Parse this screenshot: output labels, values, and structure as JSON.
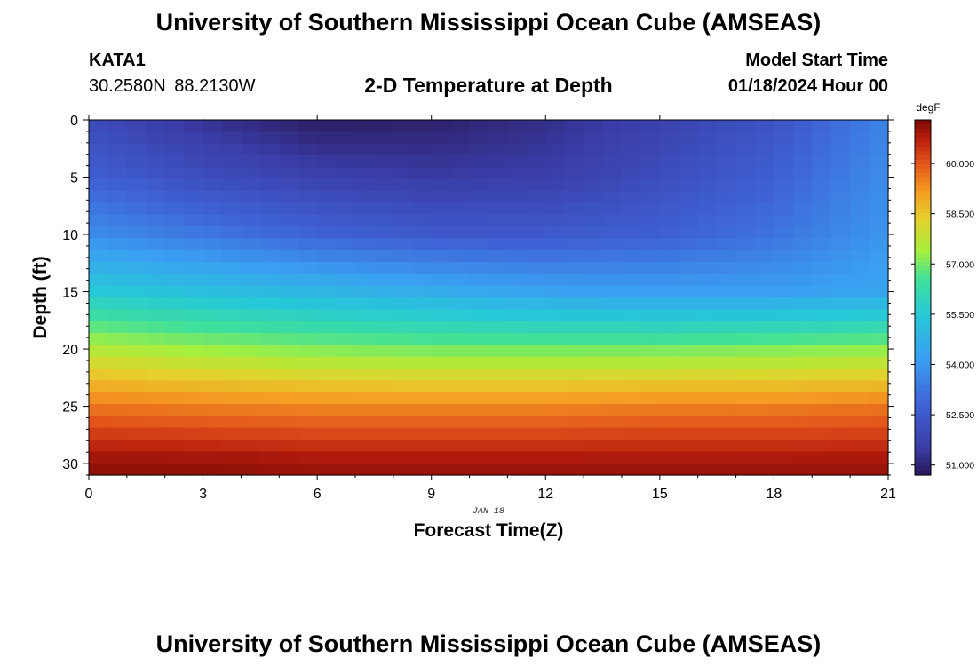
{
  "header": {
    "title": "University of Southern Mississippi Ocean Cube (AMSEAS)",
    "station": "KATA1",
    "coordinates": "30.2580N  88.2130W",
    "subtitle": "2-D Temperature at Depth",
    "model_start_label": "Model Start Time",
    "model_start_value": "01/18/2024 Hour 00"
  },
  "footer": {
    "title": "University of Southern Mississippi Ocean Cube (AMSEAS)"
  },
  "chart_data": {
    "type": "heatmap",
    "title": "2-D Temperature at Depth",
    "xlabel": "Forecast Time(Z)",
    "ylabel": "Depth (ft)",
    "date_label": "JAN 18",
    "x_ticks": [
      0,
      3,
      6,
      9,
      12,
      15,
      18,
      21
    ],
    "y_ticks": [
      0,
      5,
      10,
      15,
      20,
      25,
      30
    ],
    "xlim": [
      0,
      21
    ],
    "ylim": [
      0,
      31
    ],
    "y_inverted": true,
    "colorbar": {
      "unit": "degF",
      "ticks": [
        "51.000",
        "52.500",
        "54.000",
        "55.500",
        "57.000",
        "58.500",
        "60.000"
      ],
      "range": [
        50.7,
        61.3
      ]
    },
    "depths_ft": [
      0,
      5,
      10,
      15,
      20,
      25,
      30
    ],
    "times_hr": [
      0,
      3,
      6,
      9,
      12,
      15,
      18,
      21
    ],
    "values": [
      [
        52.0,
        51.3,
        50.8,
        50.9,
        51.2,
        51.7,
        52.3,
        53.6
      ],
      [
        52.7,
        52.1,
        51.7,
        51.5,
        51.6,
        52.1,
        52.7,
        53.8
      ],
      [
        53.8,
        53.3,
        52.8,
        52.5,
        52.5,
        52.7,
        53.2,
        54.0
      ],
      [
        55.5,
        55.2,
        54.9,
        54.6,
        54.3,
        54.2,
        54.2,
        54.4
      ],
      [
        57.6,
        57.3,
        57.1,
        57.0,
        57.0,
        57.0,
        57.1,
        57.2
      ],
      [
        59.6,
        59.5,
        59.4,
        59.4,
        59.4,
        59.5,
        59.5,
        59.6
      ],
      [
        61.1,
        61.1,
        61.0,
        61.0,
        61.0,
        61.0,
        61.0,
        61.0
      ]
    ]
  }
}
